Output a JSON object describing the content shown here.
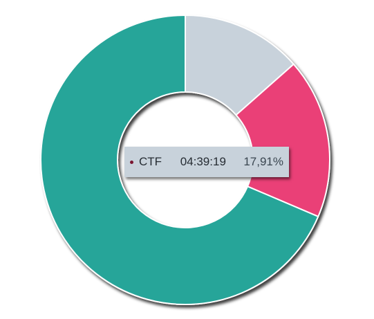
{
  "chart_data": {
    "type": "pie",
    "donut": true,
    "slices": [
      {
        "label": "",
        "value": 13.5,
        "color": "#c8d2db"
      },
      {
        "label": "CTF",
        "value": 17.91,
        "color": "#ea4077"
      },
      {
        "label": "",
        "value": 68.59,
        "color": "#26a599"
      }
    ],
    "tooltip": {
      "label": "CTF",
      "duration": "04:39:19",
      "percent": "17,91%",
      "dot_color": "#7a1530"
    }
  }
}
